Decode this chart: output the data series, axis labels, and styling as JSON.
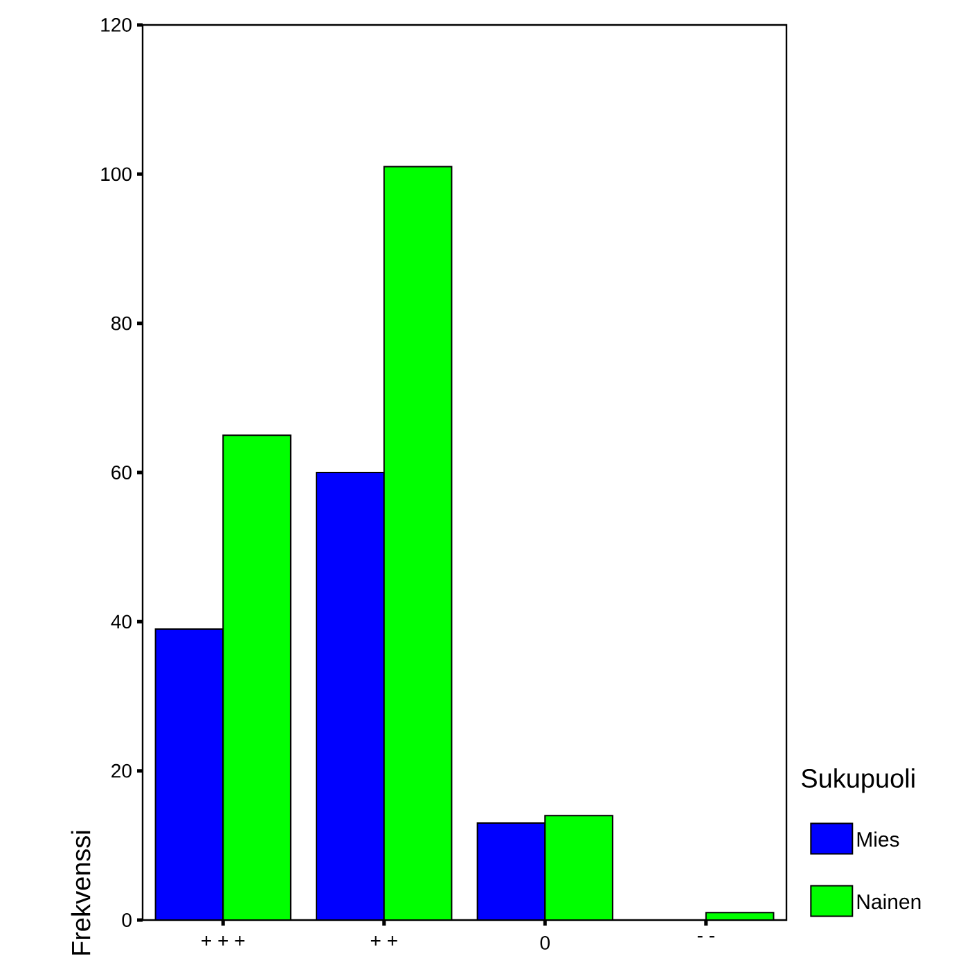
{
  "chart_data": {
    "type": "bar",
    "ylabel": "Frekvenssi",
    "legend_title": "Sukupuoli",
    "legend": "right",
    "categories": [
      "+ + +",
      "+ +",
      "0",
      "- -"
    ],
    "series": [
      {
        "name": "Mies",
        "color": "#0000ff",
        "values": [
          39,
          60,
          13,
          0
        ]
      },
      {
        "name": "Nainen",
        "color": "#00ff00",
        "values": [
          65,
          101,
          14,
          1
        ]
      }
    ],
    "ylim": [
      0,
      120
    ],
    "yticks": [
      0,
      20,
      40,
      60,
      80,
      100,
      120
    ]
  }
}
